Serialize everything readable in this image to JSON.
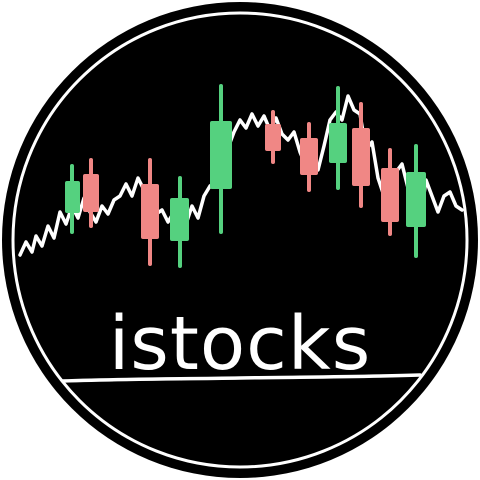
{
  "logo": {
    "wordmark": "istocks",
    "colors": {
      "background": "#000000",
      "ring": "#ffffff",
      "line": "#ffffff",
      "bullish": "#55d17f",
      "bearish": "#f08785"
    }
  }
}
